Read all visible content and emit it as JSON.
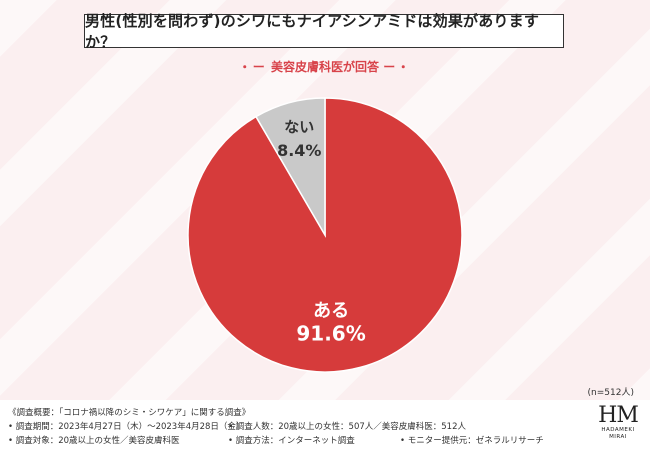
{
  "title": "男性(性別を問わず)のシワにもナイアシンアミドは効果がありますか？",
  "subtitle": "美容皮膚科医が回答",
  "sample_size": "(n=512人)",
  "colors": {
    "aru": "#d63b3b",
    "nai": "#c9c9c9",
    "accent": "#d8434a"
  },
  "chart_data": {
    "type": "pie",
    "title": "男性(性別を問わず)のシワにもナイアシンアミドは効果がありますか？",
    "slices": [
      {
        "label": "ある",
        "value": 91.6,
        "display": "91.6%"
      },
      {
        "label": "ない",
        "value": 8.4,
        "display": "8.4%"
      }
    ],
    "start_angle": "12 o'clock, clockwise"
  },
  "survey": {
    "overview": "《調査概要：「コロナ禍以降のシミ・シワケア」に関する調査》",
    "period": "• 調査期間：2023年4月27日（木）〜2023年4月28日（金）",
    "respondents": "• 調査人数：20歳以上の女性：507人／美容皮膚科医：512人",
    "target": "• 調査対象：20歳以上の女性／美容皮膚科医",
    "method": "• 調査方法：インターネット調査",
    "provider": "• モニター提供元：ゼネラルリサーチ"
  },
  "logo": {
    "mark": "HM",
    "line1": "HADAMEKI",
    "line2": "MIRAI"
  }
}
